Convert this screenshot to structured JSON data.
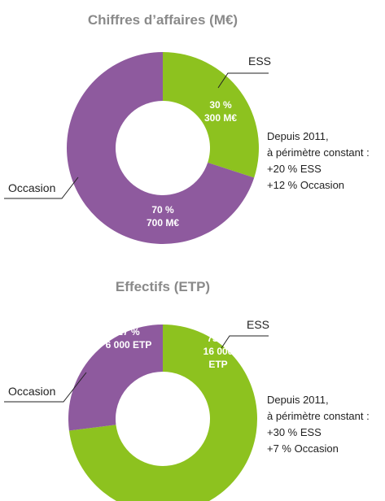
{
  "chart_data": [
    {
      "type": "pie",
      "title": "Chiffres d’affaires (M€)",
      "categories": [
        "ESS",
        "Occasion"
      ],
      "values": [
        30,
        70
      ],
      "value_labels": [
        "30 %",
        "70 %"
      ],
      "amount_labels": [
        [
          "300 M€"
        ],
        [
          "700 M€"
        ]
      ],
      "colors": [
        "#8dc21f",
        "#8e5a9e"
      ],
      "annotations": [
        "Depuis 2011,",
        "à périmètre constant :",
        "+20 % ESS",
        "+12 % Occasion"
      ]
    },
    {
      "type": "pie",
      "title": "Effectifs (ETP)",
      "categories": [
        "ESS",
        "Occasion"
      ],
      "values": [
        73,
        27
      ],
      "value_labels": [
        "73 %",
        "27 %"
      ],
      "amount_labels": [
        [
          "16 000",
          "ETP"
        ],
        [
          "6 000 ETP"
        ]
      ],
      "colors": [
        "#8dc21f",
        "#8e5a9e"
      ],
      "annotations": [
        "Depuis 2011,",
        "à périmètre constant :",
        "+30 % ESS",
        "+7 % Occasion"
      ]
    }
  ]
}
